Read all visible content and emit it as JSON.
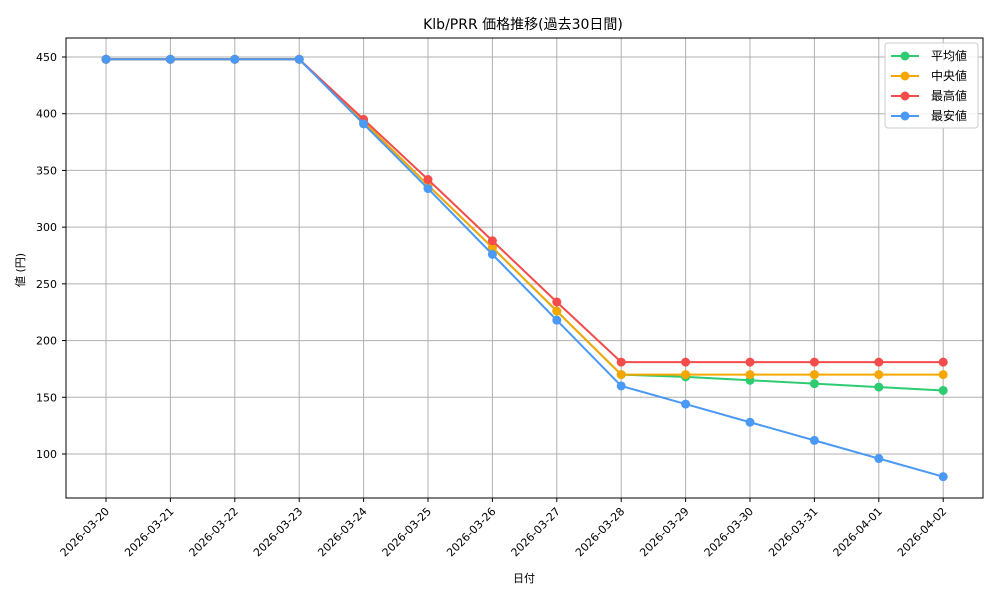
{
  "chart_data": {
    "type": "line",
    "title": "Klb/PRR 価格推移(過去30日間)",
    "xlabel": "日付",
    "ylabel": "値 (円)",
    "ylim": [
      62,
      466
    ],
    "yticks": [
      100,
      150,
      200,
      250,
      300,
      350,
      400,
      450
    ],
    "grid": true,
    "legend_position": "upper right",
    "categories": [
      "2026-03-20",
      "2026-03-21",
      "2026-03-22",
      "2026-03-23",
      "2026-03-24",
      "2026-03-25",
      "2026-03-26",
      "2026-03-27",
      "2026-03-28",
      "2026-03-29",
      "2026-03-30",
      "2026-03-31",
      "2026-04-01",
      "2026-04-02"
    ],
    "series": [
      {
        "name": "平均値",
        "color": "#2ecc71",
        "values": [
          448,
          448,
          448,
          448,
          393,
          337,
          282,
          226,
          170,
          168,
          165,
          162,
          159,
          156
        ]
      },
      {
        "name": "中央値",
        "color": "#f5a700",
        "values": [
          448,
          448,
          448,
          448,
          393,
          337,
          282,
          226,
          170,
          170,
          170,
          170,
          170,
          170
        ]
      },
      {
        "name": "最高値",
        "color": "#f44b4b",
        "values": [
          448,
          448,
          448,
          448,
          395,
          342,
          288,
          234,
          181,
          181,
          181,
          181,
          181,
          181
        ]
      },
      {
        "name": "最安値",
        "color": "#4a99f5",
        "values": [
          448,
          448,
          448,
          448,
          391,
          334,
          276,
          218,
          160,
          144,
          128,
          112,
          96,
          80
        ]
      }
    ]
  }
}
